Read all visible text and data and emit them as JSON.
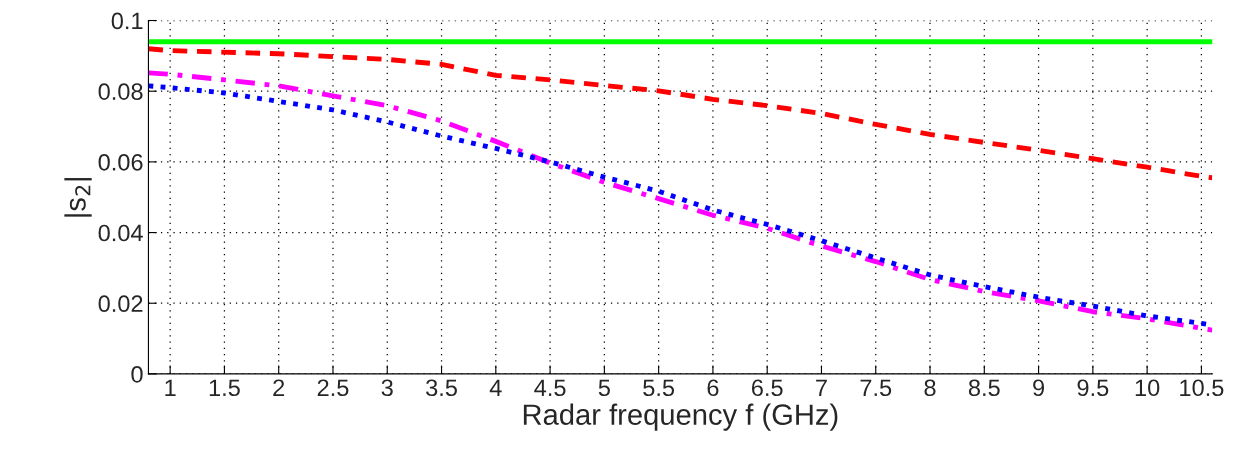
{
  "chart_data": {
    "type": "line",
    "xlabel": "Radar frequency f (GHz)",
    "ylabel": "|s$_{2}$|",
    "xlim": [
      0.8,
      10.6
    ],
    "ylim": [
      0,
      0.1
    ],
    "xticks": [
      1,
      1.5,
      2,
      2.5,
      3,
      3.5,
      4,
      4.5,
      5,
      5.5,
      6,
      6.5,
      7,
      7.5,
      8,
      8.5,
      9,
      9.5,
      10,
      10.5
    ],
    "yticks": [
      0,
      0.02,
      0.04,
      0.06,
      0.08,
      0.1
    ],
    "grid": true,
    "series": [
      {
        "color": "#00ff00",
        "line_style": "solid",
        "x": [
          0.8,
          10.6
        ],
        "values": [
          0.094,
          0.094
        ]
      },
      {
        "color": "#ff0000",
        "line_style": "dashed",
        "x": [
          0.8,
          1,
          2,
          3,
          3.5,
          4,
          4.5,
          5,
          5.5,
          6,
          6.5,
          7,
          7.5,
          8,
          8.5,
          9,
          9.5,
          10,
          10.5,
          10.6
        ],
        "values": [
          0.092,
          0.0915,
          0.0906,
          0.089,
          0.0876,
          0.0845,
          0.0832,
          0.0816,
          0.0801,
          0.0777,
          0.0759,
          0.0737,
          0.0706,
          0.0678,
          0.0655,
          0.0633,
          0.0609,
          0.0585,
          0.0559,
          0.0555
        ]
      },
      {
        "color": "#ff00ff",
        "line_style": "dashdot",
        "x": [
          0.8,
          1,
          1.5,
          2,
          2.5,
          3,
          3.5,
          4,
          4.5,
          5,
          5.5,
          6,
          6.5,
          7,
          7.5,
          8,
          8.5,
          9,
          9.5,
          10,
          10.5,
          10.6
        ],
        "values": [
          0.0852,
          0.0848,
          0.0832,
          0.0815,
          0.0787,
          0.0759,
          0.0716,
          0.0658,
          0.0597,
          0.0542,
          0.0496,
          0.0449,
          0.0412,
          0.0362,
          0.0318,
          0.0267,
          0.0233,
          0.0207,
          0.0176,
          0.0156,
          0.0129,
          0.0124
        ]
      },
      {
        "color": "#0000ff",
        "line_style": "dotted",
        "x": [
          0.8,
          1,
          1.5,
          2,
          2.5,
          3,
          3.5,
          4,
          4.5,
          5,
          5.5,
          6,
          6.5,
          7,
          7.5,
          8,
          8.5,
          9,
          9.5,
          10,
          10.5,
          10.6
        ],
        "values": [
          0.0815,
          0.081,
          0.0795,
          0.0771,
          0.0747,
          0.0713,
          0.0673,
          0.0638,
          0.06,
          0.0557,
          0.0517,
          0.0464,
          0.0423,
          0.0377,
          0.0328,
          0.028,
          0.0247,
          0.0217,
          0.0192,
          0.0164,
          0.0143,
          0.0138
        ]
      }
    ]
  }
}
